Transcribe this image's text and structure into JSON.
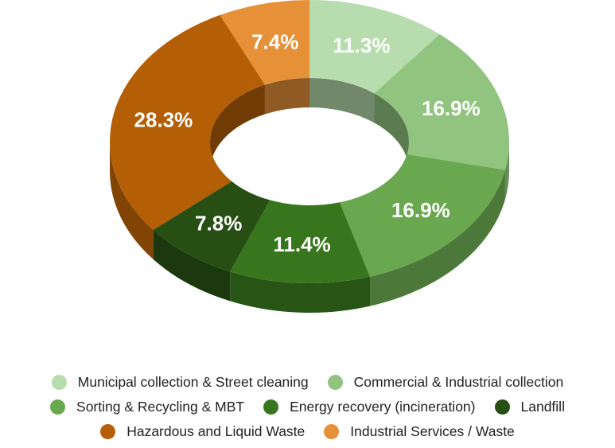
{
  "chart_data": {
    "type": "pie",
    "style": "3d-donut",
    "legend_position": "bottom",
    "categories": [
      "Municipal collection & Street cleaning",
      "Commercial & Industrial collection",
      "Sorting & Recycling & MBT",
      "Energy recovery (incineration)",
      "Landfill",
      "Hazardous and Liquid Waste",
      "Industrial Services / Waste"
    ],
    "values": [
      11.3,
      16.9,
      16.9,
      11.4,
      7.8,
      28.3,
      7.4
    ],
    "value_labels": [
      "11.3%",
      "16.9%",
      "16.9%",
      "11.4%",
      "7.8%",
      "28.3%",
      "7.4%"
    ],
    "colors": [
      "#b7dcad",
      "#91c47f",
      "#6aa84f",
      "#38761d",
      "#274e13",
      "#b45f06",
      "#e69138"
    ]
  }
}
